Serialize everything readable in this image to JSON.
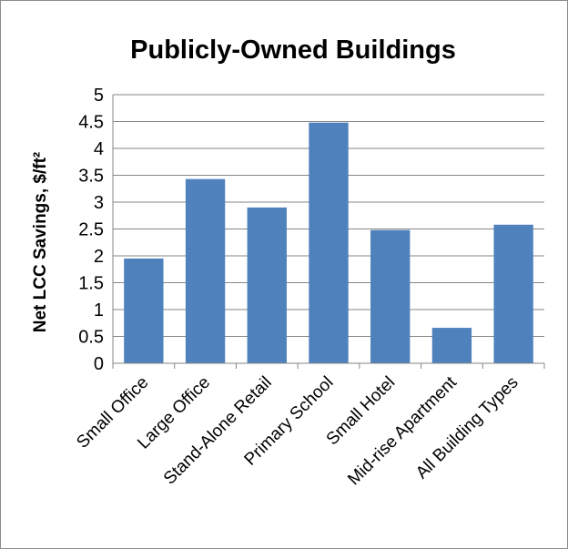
{
  "chart_data": {
    "type": "bar",
    "title": "Publicly-Owned Buildings",
    "xlabel": "",
    "ylabel": "Net LCC Savings, $/ft²",
    "categories": [
      "Small Office",
      "Large Office",
      "Stand-Alone Retail",
      "Primary School",
      "Small Hotel",
      "Mid-rise Apartment",
      "All Building Types"
    ],
    "values": [
      1.95,
      3.43,
      2.9,
      4.48,
      2.48,
      0.66,
      2.58
    ],
    "ylim": [
      0,
      5
    ],
    "yticks": [
      "0",
      "0.5",
      "1",
      "1.5",
      "2",
      "2.5",
      "3",
      "3.5",
      "4",
      "4.5",
      "5"
    ],
    "grid": true,
    "legend": "none",
    "bar_color": "#4f81bd"
  }
}
